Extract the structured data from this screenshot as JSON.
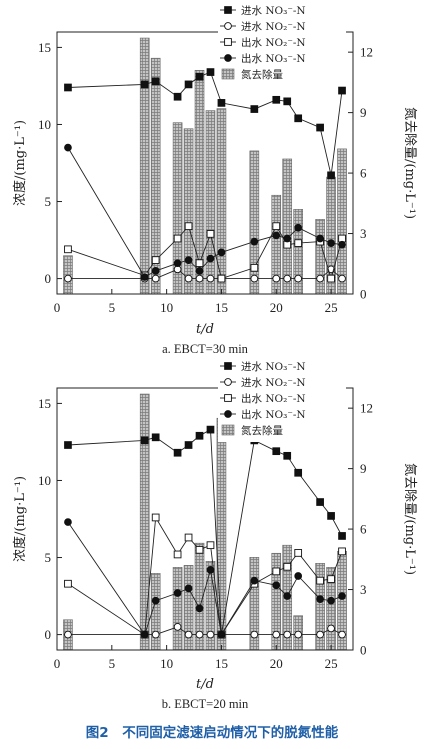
{
  "figure_caption": "图2　不同固定滤速启动情况下的脱氮性能",
  "chart_data": [
    {
      "type": "bar+line",
      "subcaption": "a. EBCT=30 min",
      "xlabel": "t/d",
      "ylabel_left": "浓度/(mg·L⁻¹)",
      "ylabel_right": "氮去除量/(mg·L⁻¹)",
      "xlim": [
        0,
        27
      ],
      "ylim_left": [
        -1,
        16
      ],
      "ylim_right": [
        0,
        13
      ],
      "xticks": [
        0,
        5,
        10,
        15,
        20,
        25
      ],
      "yticks_left": [
        0,
        5,
        10,
        15
      ],
      "yticks_right": [
        0,
        3,
        6,
        9,
        12
      ],
      "legend_position": "top-right",
      "bars": {
        "name": "氮去除量",
        "x": [
          1,
          8,
          9,
          11,
          12,
          13,
          14,
          15,
          18,
          20,
          21,
          22,
          24,
          25,
          26
        ],
        "values": [
          1.9,
          12.7,
          11.7,
          8.5,
          8.2,
          11.1,
          9.1,
          9.2,
          7.1,
          4.9,
          6.7,
          4.2,
          3.7,
          5.8,
          7.2
        ]
      },
      "series": [
        {
          "name": "进水 NO₃⁻-N",
          "marker": "filled-square",
          "x": [
            1,
            8,
            9,
            11,
            12,
            13,
            14,
            15,
            18,
            20,
            21,
            22,
            24,
            25,
            26
          ],
          "values": [
            12.4,
            12.6,
            12.8,
            11.8,
            12.6,
            13.1,
            13.4,
            11.4,
            11.0,
            11.6,
            11.5,
            10.4,
            9.8,
            6.7,
            12.2
          ]
        },
        {
          "name": "进水 NO₂⁻-N",
          "marker": "open-circle",
          "x": [
            1,
            8,
            9,
            11,
            12,
            13,
            14,
            15,
            18,
            20,
            21,
            22,
            24,
            25,
            26
          ],
          "values": [
            0,
            0,
            0,
            0.6,
            0,
            0,
            0,
            0,
            0,
            0,
            0,
            0,
            0,
            0.6,
            0
          ]
        },
        {
          "name": "出水 NO₂⁻-N",
          "marker": "open-square",
          "x": [
            1,
            8,
            9,
            11,
            12,
            13,
            14,
            15,
            18,
            20,
            21,
            22,
            24,
            25,
            26
          ],
          "values": [
            1.9,
            0.2,
            1.2,
            2.6,
            3.4,
            1.0,
            2.9,
            0,
            0.7,
            3.4,
            2.2,
            2.3,
            2.4,
            0,
            2.6
          ]
        },
        {
          "name": "出水 NO₃⁻-N",
          "marker": "filled-circle",
          "x": [
            1,
            8,
            9,
            11,
            12,
            13,
            14,
            15,
            18,
            20,
            21,
            22,
            24,
            25,
            26
          ],
          "values": [
            8.5,
            0.1,
            0.5,
            1.0,
            1.2,
            0.5,
            1.3,
            1.7,
            2.4,
            2.8,
            2.6,
            3.3,
            2.6,
            2.3,
            2.2
          ]
        }
      ]
    },
    {
      "type": "bar+line",
      "subcaption": "b. EBCT=20 min",
      "xlabel": "t/d",
      "ylabel_left": "浓度/(mg·L⁻¹)",
      "ylabel_right": "氮去除量/(mg·L⁻¹)",
      "xlim": [
        0,
        27
      ],
      "ylim_left": [
        -1,
        16
      ],
      "ylim_right": [
        0,
        13
      ],
      "xticks": [
        0,
        5,
        10,
        15,
        20,
        25
      ],
      "yticks_left": [
        0,
        5,
        10,
        15
      ],
      "yticks_right": [
        0,
        3,
        6,
        9,
        12
      ],
      "legend_position": "top-right",
      "bars": {
        "name": "氮去除量",
        "x": [
          1,
          8,
          9,
          11,
          12,
          13,
          14,
          15,
          18,
          20,
          21,
          22,
          24,
          25,
          26
        ],
        "values": [
          1.5,
          12.7,
          3.8,
          4.1,
          4.2,
          5.3,
          4.4,
          11.5,
          4.6,
          4.8,
          5.2,
          1.7,
          4.3,
          4.1,
          4.9
        ]
      },
      "series": [
        {
          "name": "进水 NO₃⁻-N",
          "marker": "filled-square",
          "x": [
            1,
            8,
            9,
            11,
            12,
            13,
            14,
            15,
            18,
            20,
            21,
            22,
            24,
            25,
            26
          ],
          "values": [
            12.3,
            12.6,
            12.8,
            11.8,
            12.3,
            12.9,
            13.3,
            0,
            12.6,
            11.9,
            11.6,
            10.5,
            8.6,
            7.7,
            6.4
          ]
        },
        {
          "name": "进水 NO₂⁻-N",
          "marker": "open-circle",
          "x": [
            1,
            8,
            9,
            11,
            12,
            13,
            14,
            15,
            18,
            20,
            21,
            22,
            24,
            25,
            26
          ],
          "values": [
            0,
            0,
            0,
            0.5,
            0,
            0,
            0,
            0,
            0,
            0,
            0,
            0,
            0,
            0.4,
            0
          ]
        },
        {
          "name": "出水 NO₂⁻-N",
          "marker": "open-square",
          "x": [
            1,
            8,
            9,
            11,
            12,
            13,
            14,
            15,
            18,
            20,
            21,
            22,
            24,
            25,
            26
          ],
          "values": [
            3.3,
            0,
            7.6,
            5.2,
            6.3,
            5.5,
            5.8,
            0,
            3.3,
            4.1,
            4.4,
            5.3,
            3.5,
            3.6,
            5.4
          ]
        },
        {
          "name": "出水 NO₃⁻-N",
          "marker": "filled-circle",
          "x": [
            1,
            8,
            9,
            11,
            12,
            13,
            14,
            15,
            18,
            20,
            21,
            22,
            24,
            25,
            26
          ],
          "values": [
            7.3,
            0,
            2.2,
            2.7,
            3.0,
            1.7,
            4.2,
            0,
            3.5,
            3.2,
            2.5,
            3.8,
            2.3,
            2.2,
            2.5
          ]
        }
      ]
    }
  ]
}
